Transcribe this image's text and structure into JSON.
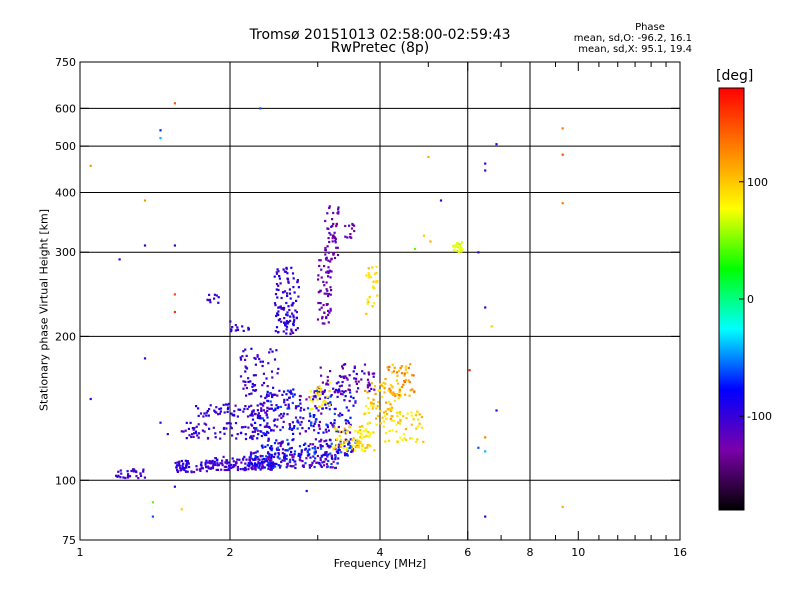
{
  "colors": {
    "background": "#ffffff",
    "axes": "#000000",
    "grid": "#000000"
  },
  "header": {
    "title_line1": "Tromsø 20151013 02:58:00-02:59:43",
    "title_line2": "RwPretec (8p)"
  },
  "phase_stats": {
    "header": "Phase",
    "o_line": "mean, sd,O: -96.2, 16.1",
    "x_line": "mean, sd,X:  95.1, 19.4"
  },
  "colorbar": {
    "label": "[deg]",
    "range": [
      -180,
      180
    ],
    "ticks": [
      "100",
      "0",
      "-100"
    ],
    "tick_values": [
      100,
      0,
      -100
    ],
    "stops": [
      "#000000",
      "#7a00aa",
      "#0000ff",
      "#00ffff",
      "#00ff00",
      "#ffff00",
      "#ff8000",
      "#ff0000"
    ]
  },
  "chart_data": {
    "type": "scatter",
    "title": "Tromsø 20151013 02:58:00-02:59:43",
    "subtitle": "RwPretec (8p)",
    "xlabel": "Frequency [MHz]",
    "ylabel": "Stationary phase Virtual Height [km]",
    "x_scale": "log",
    "y_scale": "log",
    "xlim": [
      1,
      16
    ],
    "ylim": [
      75,
      750
    ],
    "x_ticks": [
      1,
      2,
      4,
      6,
      8,
      10,
      16
    ],
    "x_tick_labels": [
      "1",
      "2",
      "4",
      "6",
      "8",
      "10",
      "16"
    ],
    "x_major_grid": [
      2,
      4,
      6,
      8
    ],
    "x_minor_ticks": [
      3,
      5,
      7,
      9,
      11,
      12,
      13,
      14,
      15
    ],
    "y_ticks": [
      75,
      100,
      200,
      300,
      400,
      500,
      600,
      750
    ],
    "y_tick_labels": [
      "75",
      "100",
      "200",
      "300",
      "400",
      "500",
      "600",
      "750"
    ],
    "y_grid": [
      100,
      200,
      300,
      400,
      500,
      600
    ],
    "grid": true,
    "color_variable": "phase [deg]",
    "clusters": [
      {
        "x_range": [
          1.18,
          1.35
        ],
        "y_range": [
          101,
          106
        ],
        "n": 30,
        "phase_range": [
          -120,
          -90
        ]
      },
      {
        "x_range": [
          1.55,
          1.8
        ],
        "y_range": [
          104,
          110
        ],
        "n": 55,
        "phase_range": [
          -120,
          -85
        ]
      },
      {
        "x_range": [
          1.8,
          2.45
        ],
        "y_range": [
          105,
          112
        ],
        "n": 150,
        "phase_range": [
          -125,
          -80
        ]
      },
      {
        "x_range": [
          2.2,
          3.3
        ],
        "y_range": [
          106,
          115
        ],
        "n": 170,
        "phase_range": [
          -130,
          -60
        ]
      },
      {
        "x_range": [
          2.3,
          3.6
        ],
        "y_range": [
          112,
          122
        ],
        "n": 140,
        "phase_range": [
          -130,
          -50
        ]
      },
      {
        "x_range": [
          1.6,
          2.4
        ],
        "y_range": [
          122,
          132
        ],
        "n": 80,
        "phase_range": [
          -120,
          -85
        ]
      },
      {
        "x_range": [
          2.2,
          3.5
        ],
        "y_range": [
          125,
          138
        ],
        "n": 120,
        "phase_range": [
          -130,
          -60
        ]
      },
      {
        "x_range": [
          1.7,
          2.4
        ],
        "y_range": [
          136,
          145
        ],
        "n": 70,
        "phase_range": [
          -120,
          -85
        ]
      },
      {
        "x_range": [
          2.3,
          3.6
        ],
        "y_range": [
          140,
          155
        ],
        "n": 120,
        "phase_range": [
          -130,
          -60
        ]
      },
      {
        "x_range": [
          3.0,
          3.9
        ],
        "y_range": [
          150,
          175
        ],
        "n": 70,
        "phase_range": [
          -140,
          -90
        ]
      },
      {
        "x_range": [
          2.1,
          2.5
        ],
        "y_range": [
          150,
          190
        ],
        "n": 60,
        "phase_range": [
          -115,
          -85
        ]
      },
      {
        "x_range": [
          2.0,
          2.2
        ],
        "y_range": [
          205,
          215
        ],
        "n": 15,
        "phase_range": [
          -110,
          -90
        ]
      },
      {
        "x_range": [
          2.45,
          2.75
        ],
        "y_range": [
          200,
          280
        ],
        "n": 110,
        "phase_range": [
          -115,
          -80
        ]
      },
      {
        "x_range": [
          3.0,
          3.2
        ],
        "y_range": [
          210,
          290
        ],
        "n": 60,
        "phase_range": [
          -135,
          -110
        ]
      },
      {
        "x_range": [
          3.1,
          3.3
        ],
        "y_range": [
          290,
          375
        ],
        "n": 50,
        "phase_range": [
          -140,
          -110
        ]
      },
      {
        "x_range": [
          3.4,
          3.55
        ],
        "y_range": [
          320,
          345
        ],
        "n": 12,
        "phase_range": [
          -130,
          -110
        ]
      },
      {
        "x_range": [
          1.8,
          1.9
        ],
        "y_range": [
          235,
          245
        ],
        "n": 10,
        "phase_range": [
          -110,
          -90
        ]
      },
      {
        "x_range": [
          3.2,
          3.9
        ],
        "y_range": [
          115,
          130
        ],
        "n": 80,
        "phase_range": [
          70,
          110
        ]
      },
      {
        "x_range": [
          3.7,
          4.4
        ],
        "y_range": [
          130,
          160
        ],
        "n": 70,
        "phase_range": [
          80,
          120
        ]
      },
      {
        "x_range": [
          4.1,
          4.7
        ],
        "y_range": [
          150,
          175
        ],
        "n": 50,
        "phase_range": [
          90,
          140
        ]
      },
      {
        "x_range": [
          4.0,
          4.9
        ],
        "y_range": [
          120,
          140
        ],
        "n": 50,
        "phase_range": [
          75,
          110
        ]
      },
      {
        "x_range": [
          3.75,
          3.95
        ],
        "y_range": [
          220,
          280
        ],
        "n": 25,
        "phase_range": [
          80,
          105
        ]
      },
      {
        "x_range": [
          2.9,
          3.2
        ],
        "y_range": [
          140,
          160
        ],
        "n": 25,
        "phase_range": [
          70,
          100
        ]
      },
      {
        "x_range": [
          5.6,
          5.85
        ],
        "y_range": [
          300,
          315
        ],
        "n": 20,
        "phase_range": [
          60,
          80
        ]
      }
    ],
    "isolated_points": [
      {
        "x": 1.05,
        "y": 455,
        "phase": 120
      },
      {
        "x": 1.35,
        "y": 385,
        "phase": 120
      },
      {
        "x": 1.55,
        "y": 615,
        "phase": 145
      },
      {
        "x": 1.55,
        "y": 245,
        "phase": 150
      },
      {
        "x": 1.55,
        "y": 225,
        "phase": 160
      },
      {
        "x": 1.45,
        "y": 540,
        "phase": -70
      },
      {
        "x": 1.45,
        "y": 520,
        "phase": -40
      },
      {
        "x": 1.35,
        "y": 310,
        "phase": -100
      },
      {
        "x": 1.55,
        "y": 310,
        "phase": -100
      },
      {
        "x": 1.2,
        "y": 290,
        "phase": -95
      },
      {
        "x": 1.05,
        "y": 148,
        "phase": -100
      },
      {
        "x": 1.35,
        "y": 180,
        "phase": -100
      },
      {
        "x": 1.5,
        "y": 125,
        "phase": -100
      },
      {
        "x": 1.45,
        "y": 132,
        "phase": -100
      },
      {
        "x": 1.55,
        "y": 97,
        "phase": -100
      },
      {
        "x": 1.4,
        "y": 90,
        "phase": 40
      },
      {
        "x": 1.6,
        "y": 87,
        "phase": 100
      },
      {
        "x": 1.4,
        "y": 84,
        "phase": -60
      },
      {
        "x": 2.3,
        "y": 600,
        "phase": -60
      },
      {
        "x": 5.0,
        "y": 475,
        "phase": 110
      },
      {
        "x": 5.3,
        "y": 385,
        "phase": -100
      },
      {
        "x": 4.9,
        "y": 325,
        "phase": 100
      },
      {
        "x": 5.05,
        "y": 316,
        "phase": 110
      },
      {
        "x": 4.7,
        "y": 305,
        "phase": 45
      },
      {
        "x": 6.5,
        "y": 460,
        "phase": -100
      },
      {
        "x": 6.5,
        "y": 445,
        "phase": -100
      },
      {
        "x": 6.85,
        "y": 505,
        "phase": -100
      },
      {
        "x": 6.3,
        "y": 300,
        "phase": -100
      },
      {
        "x": 6.5,
        "y": 230,
        "phase": -100
      },
      {
        "x": 6.7,
        "y": 210,
        "phase": 100
      },
      {
        "x": 6.05,
        "y": 170,
        "phase": 165
      },
      {
        "x": 6.85,
        "y": 140,
        "phase": -100
      },
      {
        "x": 6.5,
        "y": 123,
        "phase": 130
      },
      {
        "x": 6.5,
        "y": 115,
        "phase": -40
      },
      {
        "x": 6.3,
        "y": 117,
        "phase": -60
      },
      {
        "x": 6.5,
        "y": 84,
        "phase": -100
      },
      {
        "x": 9.3,
        "y": 545,
        "phase": 130
      },
      {
        "x": 9.3,
        "y": 480,
        "phase": 150
      },
      {
        "x": 9.3,
        "y": 380,
        "phase": 130
      },
      {
        "x": 9.3,
        "y": 88,
        "phase": 110
      },
      {
        "x": 2.85,
        "y": 95,
        "phase": -100
      }
    ]
  }
}
